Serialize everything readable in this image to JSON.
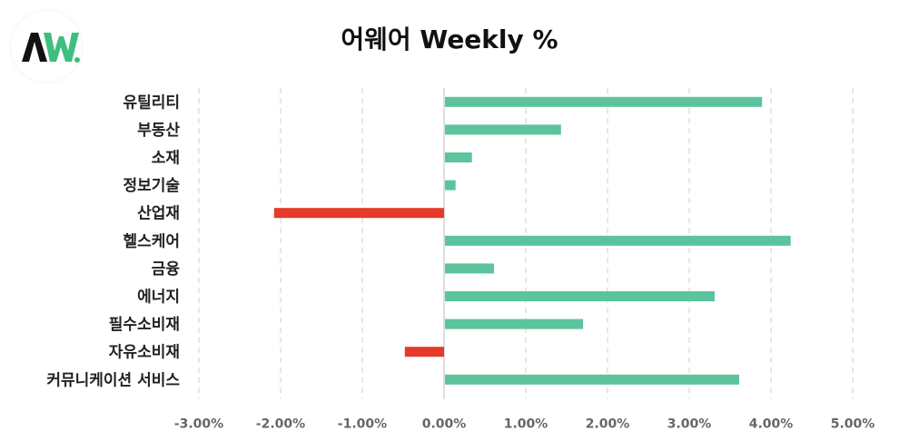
{
  "logo": {
    "text": "AW.",
    "colors": {
      "a": "#111111",
      "w": "#3fbf7f"
    }
  },
  "chart_data": {
    "type": "bar",
    "orientation": "horizontal",
    "title": "어웨어 Weekly %",
    "categories": [
      "유틸리티",
      "부동산",
      "소재",
      "정보기술",
      "산업재",
      "헬스케어",
      "금융",
      "에너지",
      "필수소비재",
      "자유소비재",
      "커뮤니케이션 서비스"
    ],
    "values": [
      3.88,
      1.42,
      0.33,
      0.13,
      -2.08,
      4.23,
      0.6,
      3.3,
      1.69,
      -0.48,
      3.6
    ],
    "xlim": [
      -3.0,
      5.0
    ],
    "xticks": [
      -3,
      -2,
      -1,
      0,
      1,
      2,
      3,
      4,
      5
    ],
    "xtick_labels": [
      "-3.00%",
      "-2.00%",
      "-1.00%",
      "0.00%",
      "1.00%",
      "2.00%",
      "3.00%",
      "4.00%",
      "5.00%"
    ],
    "grid": true,
    "legend": "none",
    "colors": {
      "positive": "#5cc49c",
      "negative": "#e63a2a"
    }
  }
}
